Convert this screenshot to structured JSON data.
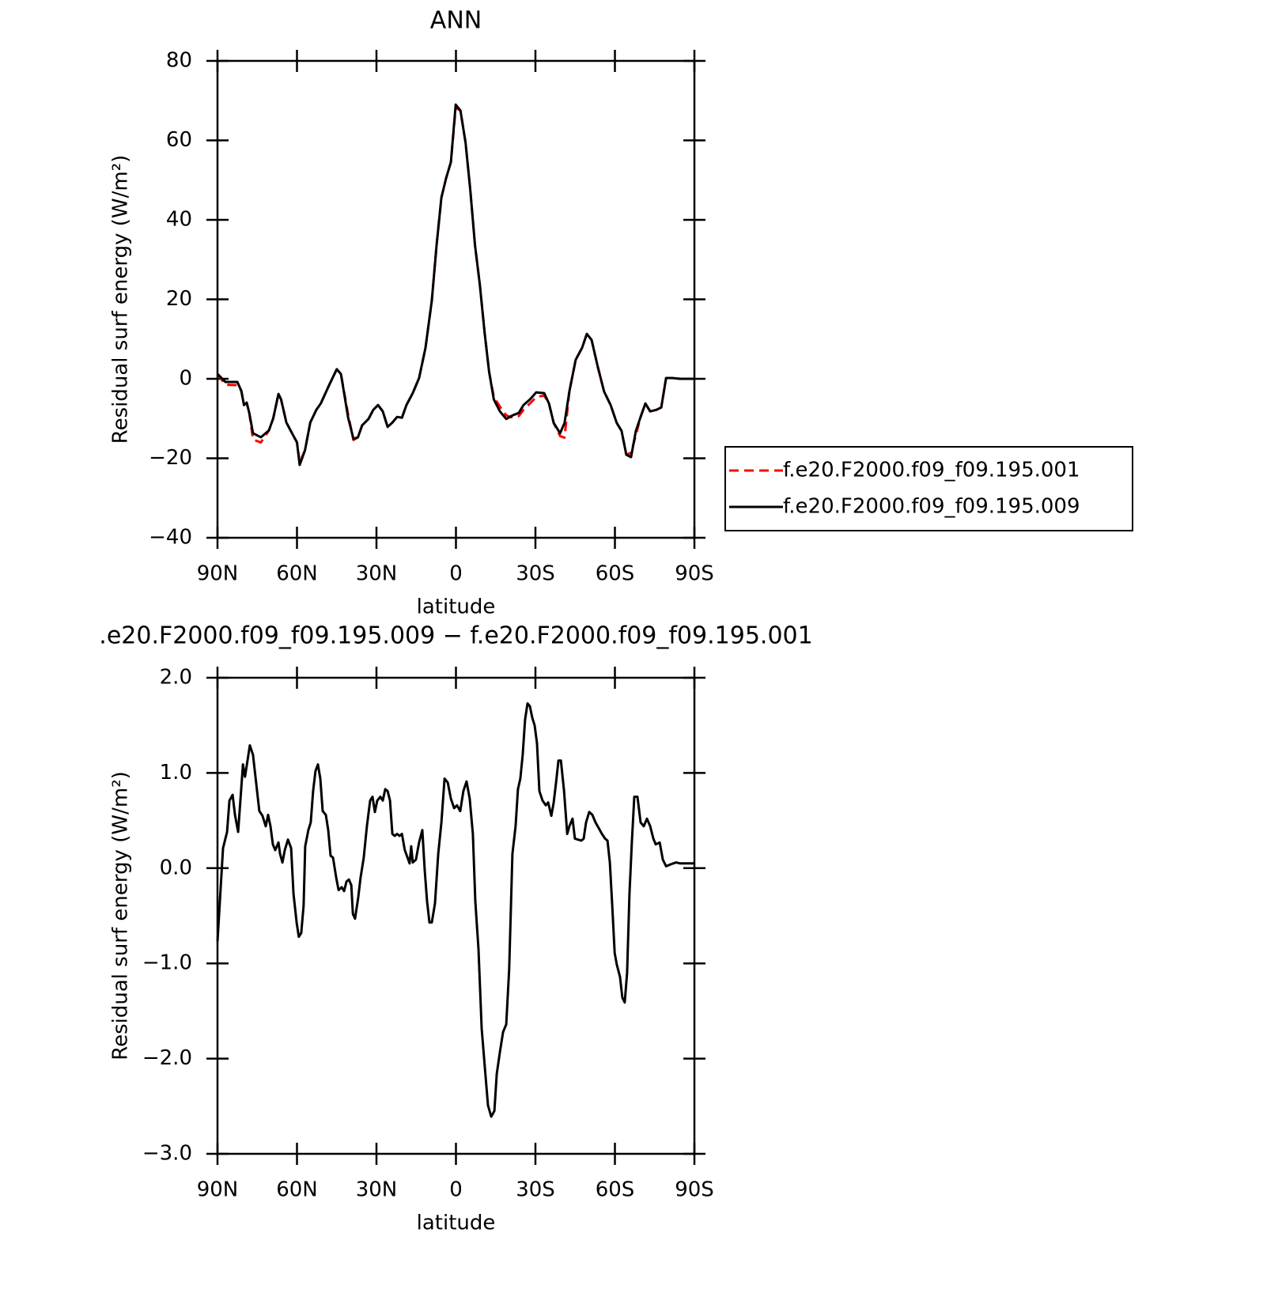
{
  "chart_data": [
    {
      "type": "line",
      "title": "ANN",
      "xlabel": "latitude",
      "ylabel": "Residual surf energy (W/m²)",
      "x": [
        90,
        87,
        82.5,
        81,
        80,
        79,
        78,
        76.6,
        73.6,
        70.6,
        69,
        67,
        66,
        64,
        61.6,
        60,
        59,
        57,
        55,
        52.7,
        51,
        48,
        45,
        43.4,
        40.7,
        38.7,
        37,
        35.4,
        33,
        31.2,
        29.4,
        27.6,
        25.8,
        24,
        22.2,
        20.4,
        18.7,
        16.3,
        13.9,
        11.5,
        9.1,
        7.3,
        5.5,
        3.7,
        1.9,
        0.1,
        -1.7,
        -3.6,
        -5.4,
        -7.2,
        -9,
        -10.8,
        -12.5,
        -14.3,
        -16.6,
        -19,
        -21.4,
        -23.7,
        -25.5,
        -27.9,
        -30.3,
        -33.3,
        -35.1,
        -36.9,
        -39.3,
        -41,
        -42.8,
        -45.2,
        -47.6,
        -49.4,
        -51.2,
        -53.6,
        -55.9,
        -58.4,
        -60.7,
        -62.5,
        -64.3,
        -66.1,
        -67.9,
        -69.7,
        -71.5,
        -73.3,
        -75.7,
        -77.5,
        -79.3,
        -81.6,
        -84.6,
        -90
      ],
      "series": [
        {
          "name": "f.e20.F2000.f09_f09.195.001",
          "color": "#ff0000",
          "dash": true,
          "values": [
            1.2,
            -1.5,
            -1.6,
            -3,
            -6.6,
            -6,
            -8.6,
            -15.3,
            -16,
            -13,
            -10,
            -3.8,
            -5.2,
            -11,
            -14,
            -16,
            -21,
            -18,
            -11,
            -7.8,
            -6.2,
            -1.8,
            2.4,
            1.2,
            -9,
            -15.4,
            -14.7,
            -11.7,
            -10.1,
            -7.8,
            -6.6,
            -8.2,
            -12.1,
            -11,
            -9.6,
            -9.8,
            -6.6,
            -3.6,
            0.2,
            7.8,
            19.7,
            33.6,
            45.6,
            50.5,
            54.5,
            68.2,
            67.5,
            59.5,
            47.6,
            33.6,
            23.7,
            11.7,
            1.8,
            -4.6,
            -7,
            -9.2,
            -9.8,
            -9.4,
            -7.8,
            -6.2,
            -4.6,
            -4.2,
            -6.2,
            -11.1,
            -14.4,
            -14.8,
            -3.2,
            4.8,
            7.8,
            11.3,
            9.8,
            2.8,
            -3.2,
            -6.6,
            -11.1,
            -13.1,
            -19.1,
            -18.6,
            -14.2,
            -9.6,
            -6.2,
            -8.2,
            -7.8,
            -7.2,
            0.2,
            0.2,
            0,
            0
          ]
        },
        {
          "name": "f.e20.F2000.f09_f09.195.009",
          "color": "#000000",
          "dash": false,
          "values": [
            1.2,
            -0.8,
            -0.8,
            -3,
            -6.6,
            -6,
            -8.6,
            -13.7,
            -14.7,
            -13,
            -10,
            -3.8,
            -5.2,
            -11,
            -14,
            -16,
            -21.7,
            -18,
            -11,
            -7.8,
            -6.2,
            -1.8,
            2.4,
            1.2,
            -9.8,
            -15.1,
            -14.7,
            -11.7,
            -10.1,
            -7.8,
            -6.6,
            -8.2,
            -12.1,
            -11,
            -9.6,
            -9.8,
            -6.6,
            -3.6,
            0.2,
            7.8,
            19.7,
            33.6,
            45.6,
            50.5,
            54.5,
            69,
            67.5,
            59.5,
            47.6,
            33.6,
            23.7,
            11.7,
            1.8,
            -5.2,
            -8.2,
            -10.1,
            -9.2,
            -8.6,
            -6.6,
            -5.2,
            -3.4,
            -3.6,
            -6.2,
            -11.1,
            -13.7,
            -11.1,
            -3.2,
            4.8,
            7.8,
            11.3,
            9.8,
            2.8,
            -3.2,
            -6.6,
            -11.1,
            -13.1,
            -19.1,
            -19.7,
            -13.1,
            -9.6,
            -6.2,
            -8.2,
            -7.8,
            -7.2,
            0.2,
            0.2,
            0,
            0
          ]
        }
      ],
      "xlim": [
        90,
        -90
      ],
      "xticks": [
        {
          "value": 90,
          "label": "90N"
        },
        {
          "value": 60,
          "label": "60N"
        },
        {
          "value": 30,
          "label": "30N"
        },
        0,
        {
          "value": -30,
          "label": "30S"
        },
        {
          "value": -60,
          "label": "60S"
        },
        {
          "value": -90,
          "label": "90S"
        }
      ],
      "ylim": [
        -40,
        80
      ],
      "yticks": [
        {
          "value": -40,
          "label": "−40"
        },
        {
          "value": -20,
          "label": "−20"
        },
        0,
        20,
        40,
        60,
        80
      ],
      "legend": "right"
    },
    {
      "type": "line",
      "title": ".e20.F2000.f09_f09.195.009 − f.e20.F2000.f09_f09.195.001",
      "xlabel": "latitude",
      "ylabel": "Residual surf energy (W/m²)",
      "x": [
        90,
        87.9,
        86.4,
        85.5,
        84.3,
        83.4,
        82.2,
        80.4,
        79.6,
        77.8,
        76.6,
        74.2,
        73,
        71.8,
        70.9,
        70,
        69.1,
        68.2,
        67,
        66.4,
        65.5,
        64.6,
        63.4,
        62.2,
        61.3,
        60.1,
        59.3,
        58.4,
        57.5,
        56.9,
        55.7,
        54.8,
        53.9,
        53,
        52.1,
        51.2,
        50.3,
        49.1,
        48.2,
        47.3,
        46.4,
        45.2,
        44.3,
        43.1,
        42.2,
        41.3,
        40.4,
        39.5,
        38.9,
        38.1,
        36.9,
        36,
        34.8,
        33.6,
        32.4,
        31.5,
        30.6,
        29.7,
        28.5,
        27.6,
        26.7,
        25.8,
        24.9,
        24,
        23.1,
        22.2,
        21.3,
        20.4,
        19.3,
        18.4,
        17.5,
        16.9,
        16.3,
        15.1,
        13.9,
        12.7,
        11.8,
        10.9,
        10,
        9.1,
        7.9,
        6.7,
        5.5,
        4.3,
        3.1,
        1.9,
        0.7,
        -0.4,
        -1.6,
        -2.8,
        -4,
        -5.2,
        -6.4,
        -7.3,
        -8.5,
        -9.7,
        -10.9,
        -12.1,
        -13.3,
        -14.5,
        -15.4,
        -16.6,
        -17.8,
        -19,
        -20.1,
        -21.3,
        -22.5,
        -23.4,
        -24.3,
        -25.2,
        -26.1,
        -27,
        -27.9,
        -28.8,
        -29.7,
        -30.6,
        -31.5,
        -32.7,
        -33.9,
        -34.8,
        -36,
        -36.9,
        -37.8,
        -38.7,
        -39.6,
        -40.8,
        -42,
        -42.8,
        -44,
        -44.9,
        -46.1,
        -47.3,
        -48.2,
        -49.1,
        -50.3,
        -51.5,
        -52.7,
        -53.9,
        -55.1,
        -56.3,
        -57.2,
        -58.1,
        -59,
        -59.9,
        -60.7,
        -61.9,
        -62.8,
        -63.7,
        -64.6,
        -65.5,
        -66.4,
        -67.3,
        -68.5,
        -69.7,
        -70.9,
        -72.1,
        -73.3,
        -74.5,
        -75.4,
        -76.9,
        -78.1,
        -79.3,
        -81,
        -83.1,
        -84.6,
        -90
      ],
      "series": [
        {
          "color": "#000000",
          "dash": false,
          "values": [
            -0.77,
            0.21,
            0.38,
            0.71,
            0.77,
            0.56,
            0.38,
            1.09,
            0.96,
            1.29,
            1.19,
            0.6,
            0.55,
            0.44,
            0.56,
            0.44,
            0.25,
            0.19,
            0.27,
            0.15,
            0.06,
            0.19,
            0.3,
            0.21,
            -0.27,
            -0.58,
            -0.72,
            -0.68,
            -0.39,
            0.23,
            0.4,
            0.48,
            0.81,
            1.02,
            1.09,
            0.94,
            0.6,
            0.56,
            0.4,
            0.13,
            0.11,
            -0.1,
            -0.23,
            -0.2,
            -0.24,
            -0.14,
            -0.12,
            -0.18,
            -0.48,
            -0.53,
            -0.31,
            -0.1,
            0.11,
            0.44,
            0.71,
            0.75,
            0.59,
            0.71,
            0.75,
            0.71,
            0.83,
            0.81,
            0.71,
            0.36,
            0.34,
            0.36,
            0.34,
            0.36,
            0.19,
            0.12,
            0.05,
            0.23,
            0.06,
            0.09,
            0.27,
            0.4,
            -0.02,
            -0.35,
            -0.57,
            -0.57,
            -0.37,
            0.15,
            0.48,
            0.94,
            0.9,
            0.73,
            0.63,
            0.66,
            0.6,
            0.81,
            0.91,
            0.73,
            0.36,
            -0.35,
            -0.85,
            -1.68,
            -2.09,
            -2.49,
            -2.61,
            -2.55,
            -2.16,
            -1.93,
            -1.72,
            -1.64,
            -1.06,
            0.15,
            0.44,
            0.83,
            0.94,
            1.19,
            1.56,
            1.73,
            1.7,
            1.58,
            1.5,
            1.31,
            0.81,
            0.71,
            0.66,
            0.69,
            0.55,
            0.69,
            0.9,
            1.13,
            1.13,
            0.81,
            0.36,
            0.44,
            0.52,
            0.31,
            0.3,
            0.29,
            0.31,
            0.48,
            0.59,
            0.56,
            0.48,
            0.42,
            0.36,
            0.31,
            0.29,
            0.06,
            -0.39,
            -0.89,
            -1.01,
            -1.14,
            -1.36,
            -1.41,
            -1.1,
            -0.27,
            0.27,
            0.75,
            0.75,
            0.48,
            0.44,
            0.52,
            0.44,
            0.31,
            0.25,
            0.27,
            0.09,
            0.02,
            0.04,
            0.06,
            0.05,
            0.05
          ]
        }
      ],
      "xlim": [
        90,
        -90
      ],
      "xticks": [
        {
          "value": 90,
          "label": "90N"
        },
        {
          "value": 60,
          "label": "60N"
        },
        {
          "value": 30,
          "label": "30N"
        },
        0,
        {
          "value": -30,
          "label": "30S"
        },
        {
          "value": -60,
          "label": "60S"
        },
        {
          "value": -90,
          "label": "90S"
        }
      ],
      "ylim": [
        -3,
        2
      ],
      "yticks": [
        {
          "value": -3,
          "label": "−3.0"
        },
        {
          "value": -2,
          "label": "−2.0"
        },
        {
          "value": -1,
          "label": "−1.0"
        },
        {
          "value": 0,
          "label": "0.0"
        },
        {
          "value": 1,
          "label": "1.0"
        },
        {
          "value": 2,
          "label": "2.0"
        }
      ]
    }
  ]
}
